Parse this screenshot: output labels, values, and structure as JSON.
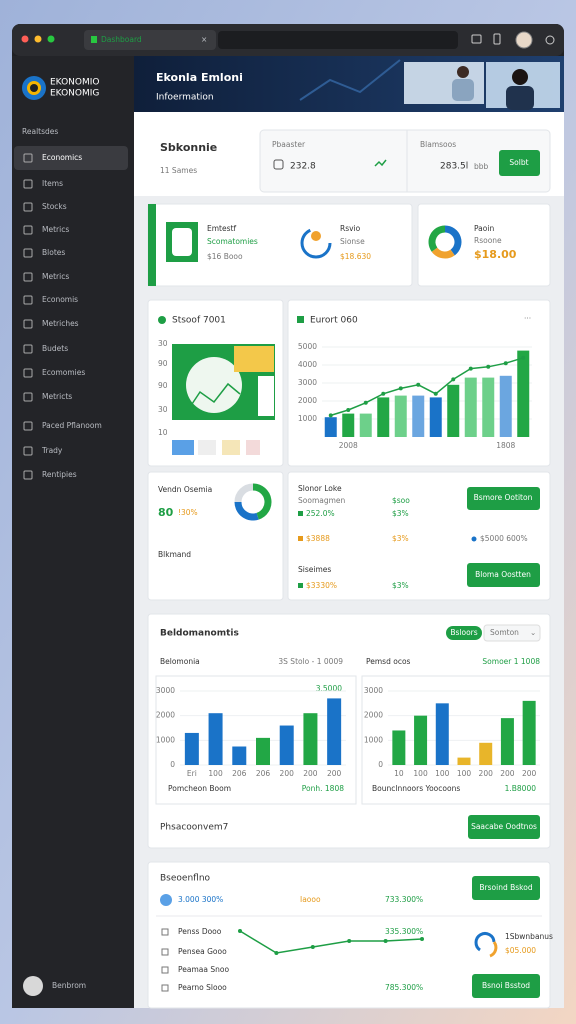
{
  "browser": {
    "tab": "Dashboard"
  },
  "sidebar": {
    "brand": [
      "EKONOMIO",
      "EKONOMIG"
    ],
    "section": "Realtsdes",
    "items": [
      "Economics",
      "Items",
      "Stocks",
      "Metrics",
      "Blotes",
      "Metrics",
      "Economis",
      "Metriches",
      "Budets",
      "Ecomomies",
      "Metricts",
      "Paced Pflanoom",
      "Trady",
      "Rentipies"
    ],
    "user": "Benbrom"
  },
  "header": {
    "title": "Ekonla Emloni",
    "subtitle": "Infoermation"
  },
  "summary": {
    "title": "Sbkonnie",
    "subtitle": "11 Sames",
    "stats": [
      {
        "label": "Pbaaster",
        "value": "232.8"
      },
      {
        "label": "Blamsoos",
        "value": "283.5l",
        "unit": "bbb"
      }
    ],
    "button": "Solbt"
  },
  "kpis": [
    {
      "title": "Emtestf",
      "subtitle": "Scomatomies",
      "value": "$16 Booo"
    },
    {
      "title": "Rsvio",
      "subtitle": "Sionse",
      "value": "$18.630"
    },
    {
      "title": "Paoin",
      "subtitle": "Rsoone",
      "value": "$18.00",
      "donut": {
        "values": [
          40,
          25,
          35
        ],
        "colors": [
          "#1a73c8",
          "#f0a22e",
          "#22a745"
        ]
      }
    }
  ],
  "stock": {
    "title": "Stsoof 7001",
    "axis_labels": [
      "30",
      "90",
      "90",
      "30",
      "10"
    ]
  },
  "trend": {
    "title": "Eurort 060",
    "ylim": [
      0,
      5000
    ],
    "yticks": [
      1000,
      2000,
      3000,
      4000,
      5000
    ],
    "categories": [
      null,
      "2008",
      null,
      null,
      null,
      null,
      null,
      null,
      null,
      null,
      "1808",
      null
    ],
    "bars": {
      "values": [
        1100,
        1300,
        1300,
        2200,
        2300,
        2300,
        2200,
        2900,
        3300,
        3300,
        3400,
        4800
      ],
      "colors": [
        "#1a73c8",
        "#22a745",
        "#6dd08a",
        "#22a745",
        "#6dd08a",
        "#6ba6e0",
        "#1a73c8",
        "#22a745",
        "#6dd08a",
        "#6dd08a",
        "#6ba6e0",
        "#22a745"
      ]
    },
    "line": {
      "color": "#1e9e45",
      "values": [
        1200,
        1500,
        1900,
        2400,
        2700,
        2900,
        2400,
        3200,
        3800,
        3900,
        4100,
        4400
      ]
    }
  },
  "vendor": {
    "title": "Vendn Osemia",
    "value": "80",
    "change": "!30%",
    "note": "Blkmand",
    "donut": {
      "values": [
        45,
        30,
        25
      ],
      "colors": [
        "#22a745",
        "#1a73c8",
        "#d9dde2"
      ]
    }
  },
  "sales": {
    "title": "Slonor Loke",
    "subtitle": "Soomagmen",
    "column": "$soo",
    "button": "Bsmore Ootiton",
    "rows": [
      {
        "label": "252.0%",
        "value": "$3%"
      },
      {
        "label": "$3888",
        "value": "$3%",
        "extra": "$5000 600%"
      }
    ],
    "section": "Siseimes",
    "row2": {
      "label": "$3330%",
      "value": "$3%"
    },
    "button2": "Bloma Oostten"
  },
  "breakdown": {
    "title": "Beldomanomtis",
    "toggle": [
      "Bsloors",
      "Somton"
    ],
    "charts": [
      {
        "title": "Belomonia",
        "range": "3S Stolo - 1 0009",
        "peak": "3.5000",
        "footer": "Pomcheon Boom",
        "total": "Ponh. 1808",
        "ylim": [
          0,
          3000
        ],
        "yticks": [
          0,
          1000,
          2000,
          3000
        ],
        "categories": [
          "Eri",
          "100",
          "206",
          "206",
          "200",
          "200",
          "200"
        ],
        "values": [
          1300,
          2100,
          750,
          1100,
          1600,
          2100,
          2700
        ],
        "colors": [
          "#1a73c8",
          "#1a73c8",
          "#1a73c8",
          "#22a745",
          "#1a73c8",
          "#22a745",
          "#1a73c8"
        ]
      },
      {
        "title": "Pemsd ocos",
        "range": "Somoer 1 1008",
        "footer": "Bounclnnoors Yoocoons",
        "total": "1.B8000",
        "ylim": [
          0,
          3000
        ],
        "yticks": [
          0,
          1000,
          2000,
          3000
        ],
        "categories": [
          "10",
          "100",
          "100",
          "100",
          "200",
          "200",
          "200"
        ],
        "values": [
          1400,
          2000,
          2500,
          300,
          900,
          1900,
          2600
        ],
        "colors": [
          "#22a745",
          "#22a745",
          "#1a73c8",
          "#e8b52a",
          "#e8b52a",
          "#22a745",
          "#22a745"
        ]
      }
    ],
    "note": "Phsacoonvem7",
    "button": "Saacabe Oodtnos"
  },
  "forecast": {
    "title": "Bseoenflno",
    "button": "Brsoind Bskod",
    "summary": [
      "3.000 300%",
      "Iaooo",
      "733.300%"
    ],
    "items": [
      "Penss Dooo",
      "Pensea Gooo",
      "Peamaa Snoo",
      "Pearno Slooo"
    ],
    "line": {
      "color": "#1e9e45",
      "ylim": [
        0,
        20
      ],
      "values": [
        17,
        6,
        9,
        12,
        12,
        13
      ]
    },
    "changes": [
      "335.300%",
      "785.300%"
    ],
    "side": {
      "title": "1Sbwnbanus",
      "value": "$05.000"
    },
    "button2": "Bsnoi Bsstod"
  }
}
